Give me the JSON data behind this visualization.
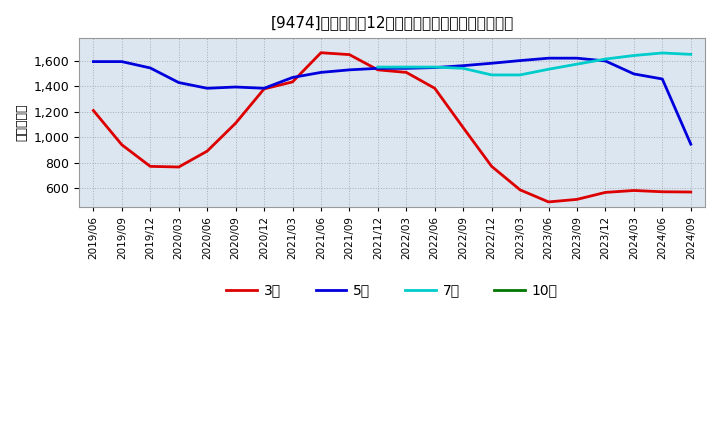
{
  "title": "[9474]　経常利益12か月移動合計の標準偏差の推移",
  "ylabel": "（百万円）",
  "background_color": "#ffffff",
  "plot_bg_color": "#dce6f1",
  "ylim": [
    450,
    1780
  ],
  "yticks": [
    600,
    800,
    1000,
    1200,
    1400,
    1600
  ],
  "series": {
    "3年": {
      "color": "#dd0000",
      "dates": [
        "2019/06",
        "2019/09",
        "2019/12",
        "2020/03",
        "2020/06",
        "2020/09",
        "2020/12",
        "2021/03",
        "2021/06",
        "2021/09",
        "2021/12",
        "2022/03",
        "2022/06",
        "2022/09",
        "2022/12",
        "2023/03",
        "2023/06",
        "2023/09",
        "2023/12",
        "2024/03",
        "2024/06",
        "2024/09"
      ],
      "values": [
        1210,
        940,
        770,
        765,
        890,
        1110,
        1380,
        1435,
        1665,
        1650,
        1530,
        1510,
        1385,
        1075,
        770,
        585,
        490,
        510,
        565,
        580,
        570,
        568
      ]
    },
    "5年": {
      "color": "#0000dd",
      "dates": [
        "2019/06",
        "2019/09",
        "2019/12",
        "2020/03",
        "2020/06",
        "2020/09",
        "2020/12",
        "2021/03",
        "2021/06",
        "2021/09",
        "2021/12",
        "2022/03",
        "2022/06",
        "2022/09",
        "2022/12",
        "2023/03",
        "2023/06",
        "2023/09",
        "2023/12",
        "2024/03",
        "2024/06",
        "2024/09"
      ],
      "values": [
        1595,
        1595,
        1545,
        1430,
        1385,
        1395,
        1385,
        1470,
        1510,
        1530,
        1542,
        1542,
        1548,
        1563,
        1582,
        1603,
        1622,
        1622,
        1600,
        1498,
        1458,
        945
      ]
    },
    "7年": {
      "color": "#00cccc",
      "dates": [
        "2021/12",
        "2022/03",
        "2022/06",
        "2022/09",
        "2022/12",
        "2023/03",
        "2023/06",
        "2023/09",
        "2023/12",
        "2024/03",
        "2024/06",
        "2024/09"
      ],
      "values": [
        1552,
        1552,
        1552,
        1542,
        1490,
        1490,
        1535,
        1575,
        1615,
        1643,
        1663,
        1652
      ]
    },
    "10年": {
      "color": "#007700",
      "dates": [],
      "values": []
    }
  },
  "xtick_labels": [
    "2019/06",
    "2019/09",
    "2019/12",
    "2020/03",
    "2020/06",
    "2020/09",
    "2020/12",
    "2021/03",
    "2021/06",
    "2021/09",
    "2021/12",
    "2022/03",
    "2022/06",
    "2022/09",
    "2022/12",
    "2023/03",
    "2023/06",
    "2023/09",
    "2023/12",
    "2024/03",
    "2024/06",
    "2024/09"
  ],
  "legend_labels": [
    "3年",
    "5年",
    "7年",
    "10年"
  ],
  "legend_colors": [
    "#dd0000",
    "#0000dd",
    "#00cccc",
    "#007700"
  ]
}
